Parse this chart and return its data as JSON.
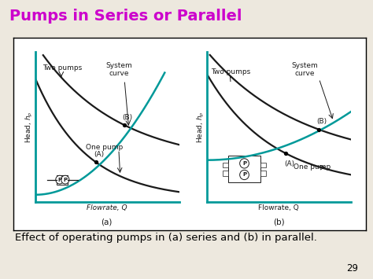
{
  "title": "Pumps in Series or Parallel",
  "title_color": "#CC00CC",
  "title_fontsize": 14,
  "bg_color": "#EDE8DE",
  "caption": "Effect of operating pumps in (a) series and (b) in parallel.",
  "caption_fontsize": 9.5,
  "page_number": "29",
  "teal_color": "#009999",
  "black_color": "#1a1a1a",
  "fs": 6.5
}
